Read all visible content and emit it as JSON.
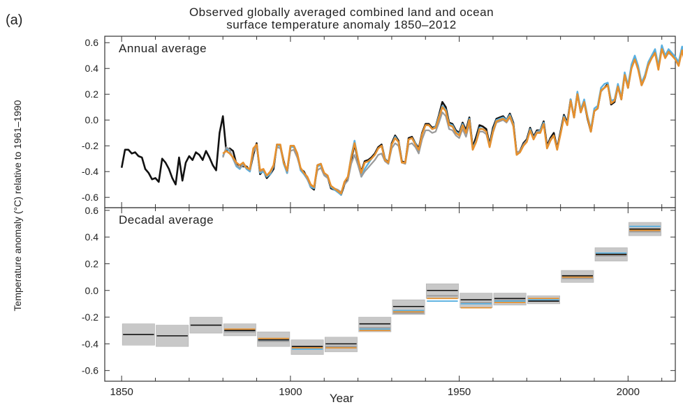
{
  "panel_label": "(a)",
  "title_line1": "Observed globally averaged combined land and ocean",
  "title_line2": "surface temperature anomaly 1850–2012",
  "ylabel": "Temperature anomaly (°C) relative to 1961–1990",
  "xlabel": "Year",
  "colors": {
    "hadcrut": "#111111",
    "mlost": "#e6902e",
    "gistemp": "#5ab0e0",
    "other": "#9a9a9a",
    "band": "#c8c8c8"
  },
  "chart_data": [
    {
      "type": "line",
      "title": "Annual average",
      "xlim": [
        1845,
        2014
      ],
      "ylim": [
        -0.68,
        0.65
      ],
      "yticks": [
        "-0.6",
        "-0.4",
        "-0.2",
        "0.0",
        "0.2",
        "0.4",
        "0.6"
      ],
      "series": [
        {
          "key": "hadcrut",
          "x0": 1850,
          "values": [
            -0.37,
            -0.23,
            -0.23,
            -0.26,
            -0.25,
            -0.28,
            -0.29,
            -0.38,
            -0.41,
            -0.46,
            -0.45,
            -0.48,
            -0.3,
            -0.33,
            -0.38,
            -0.45,
            -0.5,
            -0.29,
            -0.47,
            -0.33,
            -0.28,
            -0.31,
            -0.25,
            -0.27,
            -0.31,
            -0.24,
            -0.29,
            -0.35,
            -0.39,
            -0.1,
            0.03,
            -0.24,
            -0.22,
            -0.24,
            -0.34,
            -0.35,
            -0.36,
            -0.36,
            -0.39,
            -0.27,
            -0.18,
            -0.42,
            -0.39,
            -0.45,
            -0.42,
            -0.38,
            -0.19,
            -0.2,
            -0.32,
            -0.41,
            -0.21,
            -0.2,
            -0.26,
            -0.38,
            -0.4,
            -0.45,
            -0.52,
            -0.54,
            -0.35,
            -0.34,
            -0.42,
            -0.44,
            -0.53,
            -0.54,
            -0.55,
            -0.58,
            -0.5,
            -0.46,
            -0.31,
            -0.19,
            -0.31,
            -0.4,
            -0.32,
            -0.31,
            -0.29,
            -0.26,
            -0.21,
            -0.19,
            -0.3,
            -0.33,
            -0.18,
            -0.12,
            -0.16,
            -0.32,
            -0.33,
            -0.14,
            -0.13,
            -0.18,
            -0.22,
            -0.1,
            -0.03,
            -0.03,
            -0.06,
            -0.05,
            0.04,
            0.14,
            0.1,
            -0.02,
            -0.03,
            -0.08,
            -0.1,
            -0.02,
            -0.08,
            0.02,
            -0.21,
            -0.13,
            -0.04,
            -0.05,
            -0.07,
            -0.19,
            -0.06,
            0.01,
            0.02,
            0.03,
            0.0,
            0.05,
            -0.02,
            -0.26,
            -0.24,
            -0.18,
            -0.15,
            -0.06,
            -0.13,
            -0.08,
            -0.08,
            -0.01,
            -0.2,
            -0.14,
            -0.1,
            -0.22,
            -0.09,
            0.04,
            -0.02,
            0.16,
            0.02,
            0.21,
            0.06,
            0.14,
            0.01,
            -0.09,
            0.07,
            0.09,
            0.23,
            0.25,
            0.28,
            0.12,
            0.14,
            0.26,
            0.16,
            0.35,
            0.25,
            0.41,
            0.49,
            0.4,
            0.27,
            0.33,
            0.43,
            0.49,
            0.53,
            0.4,
            0.57,
            0.49,
            0.54,
            0.51,
            0.48,
            0.44,
            0.56,
            0.44,
            0.46
          ]
        },
        {
          "key": "gistemp",
          "x0": 1880,
          "values": [
            -0.28,
            -0.22,
            -0.24,
            -0.3,
            -0.36,
            -0.38,
            -0.34,
            -0.38,
            -0.4,
            -0.24,
            -0.2,
            -0.41,
            -0.4,
            -0.44,
            -0.42,
            -0.36,
            -0.2,
            -0.2,
            -0.34,
            -0.41,
            -0.21,
            -0.21,
            -0.27,
            -0.39,
            -0.42,
            -0.46,
            -0.52,
            -0.53,
            -0.36,
            -0.35,
            -0.42,
            -0.44,
            -0.52,
            -0.54,
            -0.56,
            -0.58,
            -0.48,
            -0.44,
            -0.28,
            -0.16,
            -0.3,
            -0.44,
            -0.38,
            -0.34,
            -0.3,
            -0.27,
            -0.22,
            -0.2,
            -0.3,
            -0.34,
            -0.19,
            -0.13,
            -0.17,
            -0.33,
            -0.33,
            -0.15,
            -0.14,
            -0.18,
            -0.24,
            -0.11,
            -0.04,
            -0.04,
            -0.07,
            -0.05,
            0.03,
            0.11,
            0.08,
            -0.03,
            -0.04,
            -0.09,
            -0.11,
            -0.03,
            -0.1,
            0.01,
            -0.22,
            -0.16,
            -0.06,
            -0.07,
            -0.09,
            -0.2,
            -0.08,
            0.0,
            0.01,
            0.02,
            0.0,
            0.04,
            -0.03,
            -0.27,
            -0.25,
            -0.19,
            -0.16,
            -0.07,
            -0.14,
            -0.09,
            -0.08,
            -0.02,
            -0.22,
            -0.16,
            -0.12,
            -0.23,
            -0.1,
            0.03,
            -0.03,
            0.16,
            0.03,
            0.22,
            0.08,
            0.16,
            0.03,
            -0.07,
            0.09,
            0.11,
            0.25,
            0.28,
            0.29,
            0.15,
            0.16,
            0.28,
            0.18,
            0.37,
            0.27,
            0.43,
            0.5,
            0.42,
            0.29,
            0.35,
            0.45,
            0.5,
            0.55,
            0.42,
            0.58,
            0.5,
            0.55,
            0.52,
            0.49,
            0.45,
            0.57,
            0.46,
            0.47
          ]
        },
        {
          "key": "other",
          "x0": 1880,
          "values": [
            -0.29,
            -0.21,
            -0.23,
            -0.3,
            -0.35,
            -0.37,
            -0.35,
            -0.37,
            -0.39,
            -0.25,
            -0.2,
            -0.4,
            -0.39,
            -0.43,
            -0.41,
            -0.36,
            -0.21,
            -0.22,
            -0.33,
            -0.4,
            -0.24,
            -0.23,
            -0.29,
            -0.38,
            -0.41,
            -0.46,
            -0.51,
            -0.52,
            -0.39,
            -0.37,
            -0.43,
            -0.45,
            -0.51,
            -0.53,
            -0.54,
            -0.56,
            -0.5,
            -0.47,
            -0.34,
            -0.27,
            -0.35,
            -0.44,
            -0.4,
            -0.37,
            -0.34,
            -0.31,
            -0.27,
            -0.26,
            -0.32,
            -0.34,
            -0.22,
            -0.18,
            -0.2,
            -0.33,
            -0.34,
            -0.19,
            -0.18,
            -0.21,
            -0.26,
            -0.15,
            -0.08,
            -0.08,
            -0.1,
            -0.09,
            -0.02,
            0.06,
            0.03,
            -0.07,
            -0.08,
            -0.12,
            -0.14,
            -0.07,
            -0.13,
            -0.03,
            -0.23,
            -0.17,
            -0.09,
            -0.09,
            -0.11,
            -0.21,
            -0.1,
            -0.02,
            -0.01,
            0.0,
            -0.02,
            0.02,
            -0.05,
            -0.26,
            -0.24,
            -0.19,
            -0.16,
            -0.08,
            -0.14,
            -0.09,
            -0.09,
            -0.03,
            -0.21,
            -0.15,
            -0.12,
            -0.22,
            -0.11,
            0.02,
            -0.04,
            0.14,
            0.02,
            0.2,
            0.06,
            0.14,
            0.02,
            -0.08,
            0.07,
            0.09,
            0.22,
            0.25,
            0.27,
            0.13,
            0.15,
            0.26,
            0.16,
            0.34,
            0.25,
            0.4,
            0.47,
            0.4,
            0.28,
            0.33,
            0.42,
            0.48,
            0.52,
            0.4,
            0.55,
            0.48,
            0.52,
            0.5,
            0.47,
            0.43,
            0.54,
            0.44,
            0.45
          ]
        },
        {
          "key": "mlost",
          "x0": 1880,
          "values": [
            -0.26,
            -0.24,
            -0.26,
            -0.29,
            -0.33,
            -0.35,
            -0.33,
            -0.37,
            -0.38,
            -0.22,
            -0.19,
            -0.39,
            -0.38,
            -0.43,
            -0.4,
            -0.35,
            -0.19,
            -0.19,
            -0.33,
            -0.39,
            -0.2,
            -0.2,
            -0.26,
            -0.37,
            -0.41,
            -0.44,
            -0.5,
            -0.52,
            -0.35,
            -0.34,
            -0.41,
            -0.43,
            -0.51,
            -0.53,
            -0.55,
            -0.57,
            -0.48,
            -0.44,
            -0.29,
            -0.18,
            -0.3,
            -0.41,
            -0.33,
            -0.32,
            -0.3,
            -0.27,
            -0.22,
            -0.2,
            -0.31,
            -0.33,
            -0.19,
            -0.14,
            -0.17,
            -0.33,
            -0.33,
            -0.15,
            -0.14,
            -0.19,
            -0.23,
            -0.11,
            -0.04,
            -0.04,
            -0.07,
            -0.06,
            0.02,
            0.1,
            0.07,
            -0.04,
            -0.05,
            -0.1,
            -0.12,
            -0.04,
            -0.1,
            0.0,
            -0.23,
            -0.17,
            -0.07,
            -0.07,
            -0.09,
            -0.21,
            -0.09,
            -0.01,
            0.0,
            0.01,
            -0.01,
            0.03,
            -0.04,
            -0.27,
            -0.25,
            -0.2,
            -0.17,
            -0.08,
            -0.15,
            -0.1,
            -0.1,
            -0.03,
            -0.22,
            -0.16,
            -0.12,
            -0.23,
            -0.11,
            0.02,
            -0.04,
            0.15,
            0.02,
            0.2,
            0.06,
            0.14,
            0.02,
            -0.09,
            0.07,
            0.09,
            0.23,
            0.25,
            0.27,
            0.13,
            0.15,
            0.26,
            0.16,
            0.35,
            0.25,
            0.4,
            0.47,
            0.39,
            0.27,
            0.33,
            0.43,
            0.48,
            0.52,
            0.39,
            0.55,
            0.48,
            0.53,
            0.5,
            0.47,
            0.42,
            0.54,
            0.43,
            0.44
          ]
        }
      ]
    },
    {
      "type": "line",
      "title": "Decadal average",
      "xlim": [
        1845,
        2014
      ],
      "ylim": [
        -0.68,
        0.62
      ],
      "xticks": [
        "1850",
        "1900",
        "1950",
        "2000"
      ],
      "yticks": [
        "-0.6",
        "-0.4",
        "-0.2",
        "0.0",
        "0.2",
        "0.4",
        "0.6"
      ],
      "decades": [
        {
          "start": 1850,
          "hadcrut": -0.33,
          "lo": -0.41,
          "hi": -0.25
        },
        {
          "start": 1860,
          "hadcrut": -0.34,
          "lo": -0.42,
          "hi": -0.26
        },
        {
          "start": 1870,
          "hadcrut": -0.26,
          "lo": -0.32,
          "hi": -0.2
        },
        {
          "start": 1880,
          "hadcrut": -0.3,
          "mlost": -0.29,
          "gistemp": -0.3,
          "other": -0.31,
          "lo": -0.34,
          "hi": -0.25
        },
        {
          "start": 1890,
          "hadcrut": -0.37,
          "mlost": -0.36,
          "gistemp": -0.37,
          "other": -0.38,
          "lo": -0.42,
          "hi": -0.31
        },
        {
          "start": 1900,
          "hadcrut": -0.42,
          "mlost": -0.43,
          "gistemp": -0.44,
          "other": -0.42,
          "lo": -0.48,
          "hi": -0.37
        },
        {
          "start": 1910,
          "hadcrut": -0.4,
          "mlost": -0.43,
          "gistemp": -0.43,
          "other": -0.42,
          "lo": -0.46,
          "hi": -0.35
        },
        {
          "start": 1920,
          "hadcrut": -0.25,
          "mlost": -0.3,
          "gistemp": -0.29,
          "other": -0.28,
          "lo": -0.31,
          "hi": -0.2
        },
        {
          "start": 1930,
          "hadcrut": -0.12,
          "mlost": -0.16,
          "gistemp": -0.15,
          "other": -0.17,
          "lo": -0.18,
          "hi": -0.07
        },
        {
          "start": 1940,
          "hadcrut": 0.0,
          "mlost": -0.06,
          "gistemp": -0.08,
          "other": -0.04,
          "lo": -0.06,
          "hi": 0.05
        },
        {
          "start": 1950,
          "hadcrut": -0.07,
          "mlost": -0.13,
          "gistemp": -0.1,
          "other": -0.09,
          "lo": -0.13,
          "hi": -0.02
        },
        {
          "start": 1960,
          "hadcrut": -0.06,
          "mlost": -0.09,
          "gistemp": -0.08,
          "other": -0.07,
          "lo": -0.11,
          "hi": -0.02
        },
        {
          "start": 1970,
          "hadcrut": -0.08,
          "mlost": -0.06,
          "gistemp": -0.07,
          "other": -0.08,
          "lo": -0.1,
          "hi": -0.04
        },
        {
          "start": 1980,
          "hadcrut": 0.11,
          "mlost": 0.1,
          "gistemp": 0.1,
          "other": 0.09,
          "lo": 0.06,
          "hi": 0.15
        },
        {
          "start": 1990,
          "hadcrut": 0.27,
          "mlost": 0.27,
          "gistemp": 0.28,
          "other": 0.26,
          "lo": 0.22,
          "hi": 0.32
        },
        {
          "start": 2000,
          "hadcrut": 0.46,
          "mlost": 0.45,
          "gistemp": 0.48,
          "other": 0.44,
          "lo": 0.41,
          "hi": 0.51
        }
      ]
    }
  ]
}
